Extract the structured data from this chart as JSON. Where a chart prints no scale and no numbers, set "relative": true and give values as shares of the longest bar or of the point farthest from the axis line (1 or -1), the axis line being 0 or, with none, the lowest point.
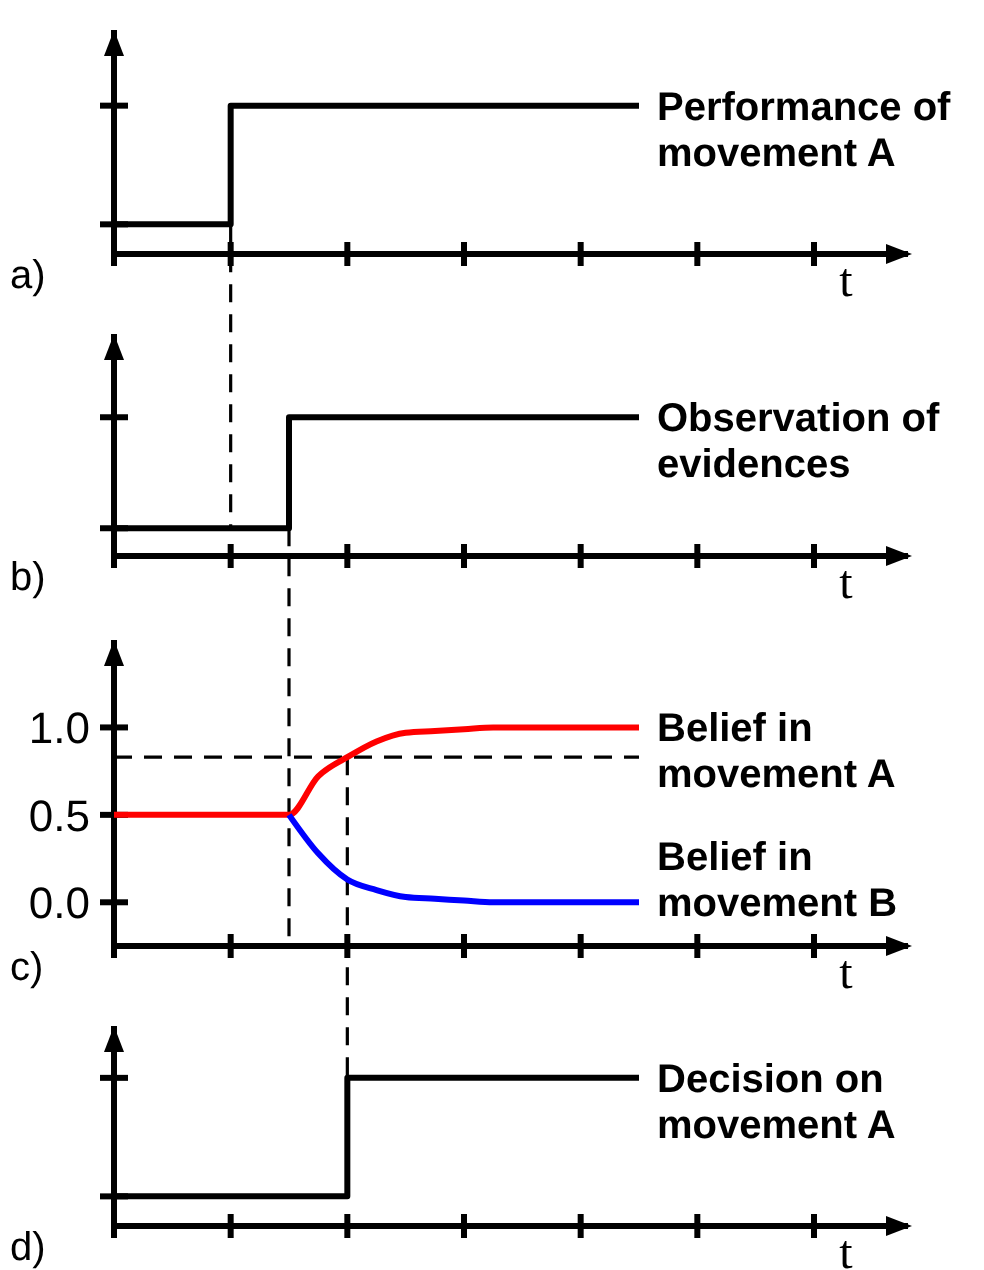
{
  "chart_data": [
    {
      "type": "step",
      "relative": true,
      "categories": [
        null,
        null,
        null,
        null,
        null,
        null,
        null,
        null,
        null,
        null,
        null,
        null,
        null,
        null,
        null,
        null,
        null,
        null,
        null,
        null,
        null,
        null,
        null,
        null,
        null
      ],
      "series": [
        {
          "name": "Performance of movement A",
          "color": "#000000",
          "values": [
            0.2,
            0.2,
            0.2,
            0.2,
            1,
            1,
            1,
            1,
            1,
            1,
            1,
            1,
            1,
            1,
            1,
            1,
            1,
            1,
            1,
            null,
            null,
            null,
            null,
            null,
            null
          ]
        }
      ],
      "xlabel": "t",
      "tick_labels": false,
      "annotations": [
        "a)"
      ]
    },
    {
      "type": "step",
      "relative": true,
      "categories": [
        null,
        null,
        null,
        null,
        null,
        null,
        null,
        null,
        null,
        null,
        null,
        null,
        null,
        null,
        null,
        null,
        null,
        null,
        null,
        null,
        null,
        null,
        null,
        null,
        null
      ],
      "series": [
        {
          "name": "Observation of evidences",
          "color": "#000000",
          "values": [
            0.2,
            0.2,
            0.2,
            0.2,
            0.2,
            0.2,
            1,
            1,
            1,
            1,
            1,
            1,
            1,
            1,
            1,
            1,
            1,
            1,
            1,
            null,
            null,
            null,
            null,
            null,
            null
          ]
        }
      ],
      "xlabel": "t",
      "tick_labels": false,
      "annotations": [
        "b)"
      ]
    },
    {
      "type": "line",
      "categories": [
        null,
        null,
        null,
        null,
        null,
        null,
        null,
        null,
        null,
        null,
        null,
        null,
        null,
        null,
        null,
        null,
        null,
        null,
        null,
        null,
        null,
        null,
        null,
        null,
        null
      ],
      "series": [
        {
          "name": "Belief in movement A",
          "color": "#ff0000",
          "values": [
            0.5,
            0.5,
            0.5,
            0.5,
            0.5,
            0.5,
            0.5,
            0.72,
            0.83,
            0.92,
            0.97,
            0.98,
            0.99,
            1,
            1,
            1,
            1,
            1,
            1,
            null,
            null,
            null,
            null,
            null,
            null
          ]
        },
        {
          "name": "Belief in movement B",
          "color": "#0000ff",
          "values": [
            null,
            null,
            null,
            null,
            null,
            null,
            0.5,
            0.28,
            0.13,
            0.07,
            0.03,
            0.02,
            0.01,
            0,
            0,
            0,
            0,
            0,
            0,
            null,
            null,
            null,
            null,
            null,
            null
          ]
        }
      ],
      "xlabel": "t",
      "ylim": [
        -0.25,
        1.5
      ],
      "yticks": [
        {
          "value": 0,
          "label": "0.0"
        },
        0.5,
        {
          "value": 1,
          "label": "1.0"
        }
      ],
      "tick_labels": "y",
      "annotations": [
        "c)"
      ],
      "ref_lines": [
        {
          "axis": "y",
          "value": 0.83,
          "color": "#000000",
          "line_style": "dashed"
        }
      ]
    },
    {
      "type": "step",
      "relative": true,
      "categories": [
        null,
        null,
        null,
        null,
        null,
        null,
        null,
        null,
        null,
        null,
        null,
        null,
        null,
        null,
        null,
        null,
        null,
        null,
        null,
        null,
        null,
        null,
        null,
        null,
        null
      ],
      "series": [
        {
          "name": "Decision on movement A",
          "color": "#000000",
          "values": [
            0.2,
            0.2,
            0.2,
            0.2,
            0.2,
            0.2,
            0.2,
            0.2,
            1,
            1,
            1,
            1,
            1,
            1,
            1,
            1,
            1,
            1,
            1,
            null,
            null,
            null,
            null,
            null,
            null
          ]
        }
      ],
      "xlabel": "t",
      "tick_labels": false,
      "annotations": [
        "d)"
      ]
    }
  ]
}
